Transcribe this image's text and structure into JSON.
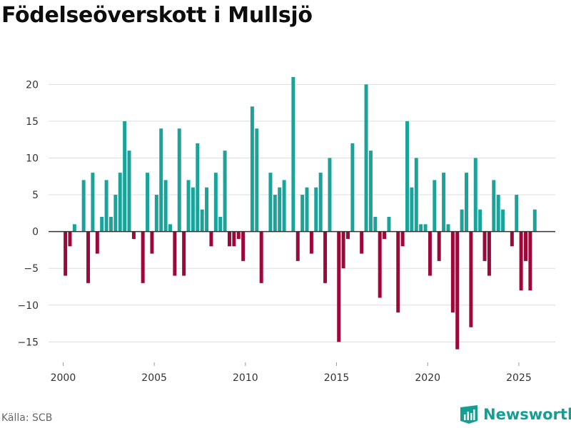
{
  "title": "Födelseöverskott i Mullsjö",
  "source": "Källa: SCB",
  "brand": {
    "name": "Newsworthy",
    "icon": "newsworthy-logo-icon"
  },
  "colors": {
    "positive": "#1aa39a",
    "negative": "#9c0838",
    "grid": "#dddddd",
    "zero_line": "#333333",
    "brand": "#159e93"
  },
  "chart_data": {
    "type": "bar",
    "title": "Födelseöverskott i Mullsjö",
    "xlabel": "",
    "ylabel": "",
    "xlim": [
      1999.2,
      2027.0
    ],
    "ylim": [
      -17,
      21
    ],
    "x_ticks": [
      2000,
      2005,
      2010,
      2015,
      2020,
      2025
    ],
    "x_tick_labels": [
      "2000",
      "2005",
      "2010",
      "2015",
      "2020",
      "2025"
    ],
    "y_ticks": [
      20,
      15,
      10,
      5,
      0,
      -5,
      -10,
      -15
    ],
    "y_tick_labels": [
      "20",
      "15",
      "10",
      "5",
      "0",
      "−5",
      "−10",
      "−15"
    ],
    "grid": true,
    "frequency": "quarterly",
    "start": "2000-Q1",
    "values": [
      -6,
      -2,
      1,
      0,
      7,
      -7,
      8,
      -3,
      2,
      7,
      2,
      5,
      8,
      15,
      11,
      -1,
      0,
      -7,
      8,
      -3,
      5,
      14,
      7,
      1,
      -6,
      14,
      -6,
      7,
      6,
      12,
      3,
      6,
      -2,
      8,
      2,
      11,
      -2,
      -2,
      -1,
      -4,
      0,
      17,
      14,
      -7,
      0,
      8,
      5,
      6,
      7,
      0,
      21,
      -4,
      5,
      6,
      -3,
      6,
      8,
      -7,
      10,
      0,
      -15,
      -5,
      -1,
      12,
      0,
      -3,
      20,
      11,
      2,
      -9,
      -1,
      2,
      0,
      -11,
      -2,
      15,
      6,
      10,
      1,
      1,
      -6,
      7,
      -4,
      8,
      1,
      -11,
      -16,
      3,
      8,
      -13,
      10,
      3,
      -4,
      -6,
      7,
      5,
      3,
      0,
      -2,
      5,
      -8,
      -4,
      -8,
      3
    ]
  }
}
